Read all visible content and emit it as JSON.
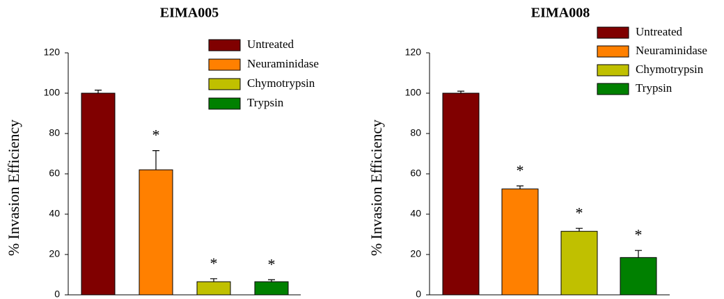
{
  "chart_data": [
    {
      "type": "bar",
      "title": "EIMA005",
      "y_label": "% Invasion Efficiency",
      "categories": [
        null
      ],
      "ylim": [
        0,
        120
      ],
      "yticks": [
        0,
        20,
        40,
        60,
        80,
        100,
        120
      ],
      "series": [
        {
          "name": "Untreated",
          "color": "#800000",
          "values": [
            100
          ],
          "errors": [
            1.5
          ]
        },
        {
          "name": "Neuraminidase",
          "color": "#ff8000",
          "values": [
            62
          ],
          "errors": [
            9.5
          ],
          "annotation": "*"
        },
        {
          "name": "Chymotrypsin",
          "color": "#c0c000",
          "values": [
            6.5
          ],
          "errors": [
            1.5
          ],
          "annotation": "*"
        },
        {
          "name": "Trypsin",
          "color": "#008000",
          "values": [
            6.5
          ],
          "errors": [
            1
          ],
          "annotation": "*"
        }
      ]
    },
    {
      "type": "bar",
      "title": "EIMA008",
      "y_label": "% Invasion Efficiency",
      "categories": [
        null
      ],
      "ylim": [
        0,
        120
      ],
      "yticks": [
        0,
        20,
        40,
        60,
        80,
        100,
        120
      ],
      "series": [
        {
          "name": "Untreated",
          "color": "#800000",
          "values": [
            100
          ],
          "errors": [
            1
          ]
        },
        {
          "name": "Neuraminidase",
          "color": "#ff8000",
          "values": [
            52.5
          ],
          "errors": [
            1.5
          ],
          "annotation": "*"
        },
        {
          "name": "Chymotrypsin",
          "color": "#c0c000",
          "values": [
            31.5
          ],
          "errors": [
            1.5
          ],
          "annotation": "*"
        },
        {
          "name": "Trypsin",
          "color": "#008000",
          "values": [
            18.5
          ],
          "errors": [
            3.5
          ],
          "annotation": "*"
        }
      ]
    }
  ]
}
